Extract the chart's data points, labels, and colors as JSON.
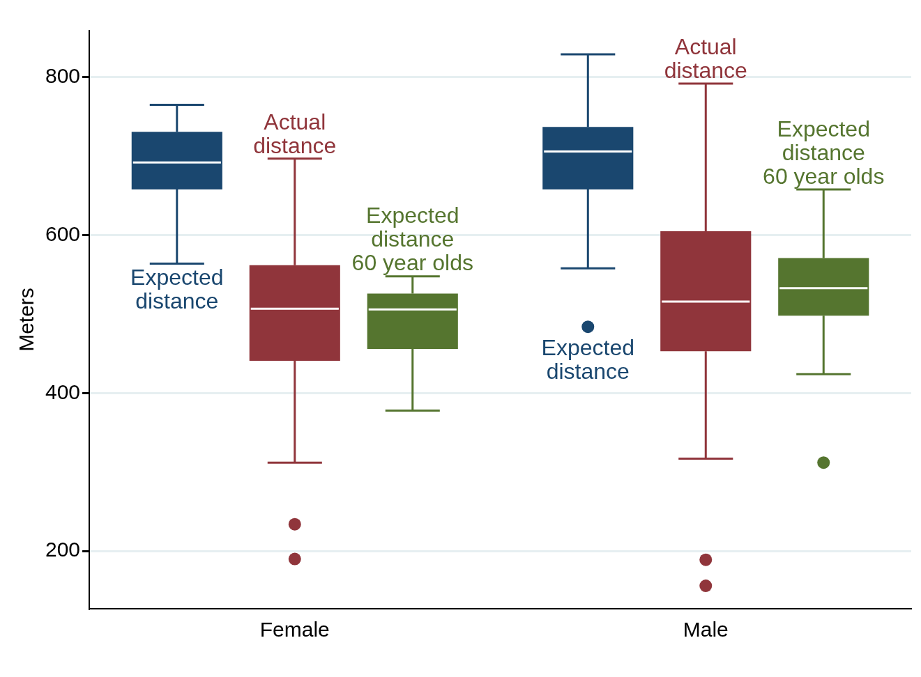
{
  "chart_data": {
    "type": "box",
    "ylabel": "Meters",
    "categories": [
      "Female",
      "Male"
    ],
    "ylim": [
      127,
      859
    ],
    "yticks": [
      200,
      400,
      600,
      800
    ],
    "grid": "y",
    "legend": false,
    "series": [
      {
        "name": "Expected distance",
        "color": "#1a476f",
        "boxes": [
          {
            "low": 564,
            "q1": 658,
            "median": 692,
            "q3": 731,
            "high": 765
          },
          {
            "low": 558,
            "q1": 658,
            "median": 706,
            "q3": 737,
            "high": 829,
            "outliers": [
              484
            ]
          }
        ]
      },
      {
        "name": "Actual distance",
        "color": "#90353b",
        "boxes": [
          {
            "low": 312,
            "q1": 441,
            "median": 507,
            "q3": 562,
            "high": 697,
            "outliers": [
              234,
              190
            ]
          },
          {
            "low": 317,
            "q1": 453,
            "median": 516,
            "q3": 605,
            "high": 792,
            "outliers": [
              189,
              156
            ]
          }
        ]
      },
      {
        "name": "Expected distance 60 year olds",
        "color": "#55752f",
        "boxes": [
          {
            "low": 378,
            "q1": 456,
            "median": 506,
            "q3": 526,
            "high": 548
          },
          {
            "low": 424,
            "q1": 498,
            "median": 533,
            "q3": 571,
            "high": 658,
            "outliers": [
              312
            ]
          }
        ]
      }
    ]
  }
}
